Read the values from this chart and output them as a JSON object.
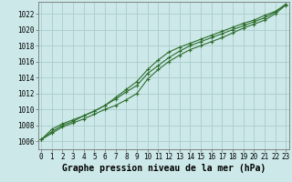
{
  "background_color": "#cce8e8",
  "grid_color": "#aacccc",
  "line_color": "#2d6e2d",
  "x_hours": [
    0,
    1,
    2,
    3,
    4,
    5,
    6,
    7,
    8,
    9,
    10,
    11,
    12,
    13,
    14,
    15,
    16,
    17,
    18,
    19,
    20,
    21,
    22,
    23
  ],
  "line1": [
    1006.2,
    1007.0,
    1007.8,
    1008.3,
    1008.8,
    1009.4,
    1010.0,
    1010.5,
    1011.2,
    1012.0,
    1013.8,
    1015.0,
    1016.0,
    1016.8,
    1017.5,
    1018.0,
    1018.5,
    1019.0,
    1019.6,
    1020.2,
    1020.7,
    1021.2,
    1022.0,
    1023.1
  ],
  "line2": [
    1006.2,
    1007.2,
    1008.0,
    1008.5,
    1009.2,
    1009.8,
    1010.5,
    1011.3,
    1012.2,
    1013.0,
    1014.5,
    1015.5,
    1016.5,
    1017.3,
    1018.0,
    1018.5,
    1019.0,
    1019.5,
    1020.0,
    1020.5,
    1021.0,
    1021.5,
    1022.2,
    1023.2
  ],
  "line3": [
    1006.2,
    1007.5,
    1008.2,
    1008.7,
    1009.2,
    1009.8,
    1010.5,
    1011.5,
    1012.5,
    1013.5,
    1015.0,
    1016.2,
    1017.2,
    1017.8,
    1018.3,
    1018.8,
    1019.3,
    1019.8,
    1020.3,
    1020.8,
    1021.2,
    1021.8,
    1022.3,
    1023.2
  ],
  "ylim": [
    1005.0,
    1023.5
  ],
  "yticks": [
    1006,
    1008,
    1010,
    1012,
    1014,
    1016,
    1018,
    1020,
    1022
  ],
  "xlim": [
    -0.3,
    23.3
  ],
  "xticks": [
    0,
    1,
    2,
    3,
    4,
    5,
    6,
    7,
    8,
    9,
    10,
    11,
    12,
    13,
    14,
    15,
    16,
    17,
    18,
    19,
    20,
    21,
    22,
    23
  ],
  "xlabel": "Graphe pression niveau de la mer (hPa)",
  "tick_fontsize": 5.5,
  "label_fontsize": 7.0
}
